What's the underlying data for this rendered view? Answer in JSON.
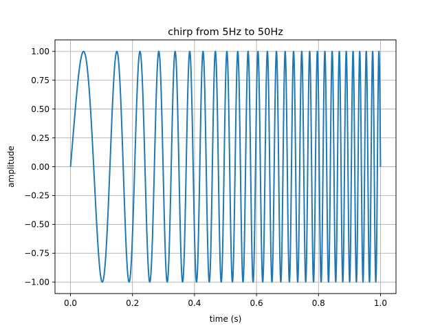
{
  "chart_data": {
    "type": "line",
    "title": "chirp  from 5Hz  to 50Hz",
    "xlabel": "time (s)",
    "ylabel": "amplitude",
    "xlim": [
      -0.05,
      1.05
    ],
    "ylim": [
      -1.1,
      1.1
    ],
    "xticks": [
      0.0,
      0.2,
      0.4,
      0.6,
      0.8,
      1.0
    ],
    "xtick_labels": [
      "0.0",
      "0.2",
      "0.4",
      "0.6",
      "0.8",
      "1.0"
    ],
    "yticks": [
      -1.0,
      -0.75,
      -0.5,
      -0.25,
      0.0,
      0.25,
      0.5,
      0.75,
      1.0
    ],
    "ytick_labels": [
      "−1.00",
      "−0.75",
      "−0.50",
      "−0.25",
      "0.00",
      "0.25",
      "0.50",
      "0.75",
      "1.00"
    ],
    "grid": true,
    "series": [
      {
        "function": "sin(2*pi*(5*t + 22.5*t^2))",
        "f0_hz": 5,
        "f1_hz": 50,
        "t_range": [
          0,
          1
        ],
        "color": "#1f77b4"
      }
    ]
  }
}
